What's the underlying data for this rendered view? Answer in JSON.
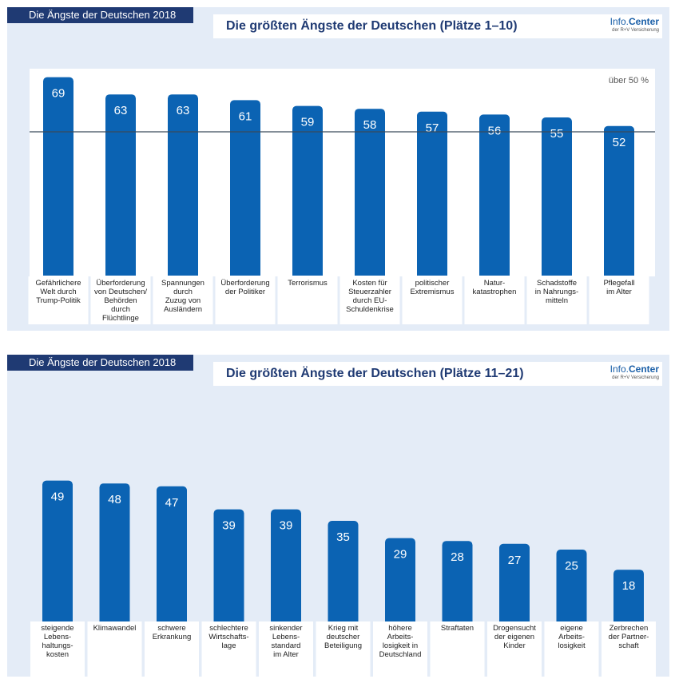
{
  "charts": [
    {
      "tag": "Die Ängste der Deutschen 2018",
      "title": "Die größten Ängste der Deutschen (Plätze 1–10)",
      "brand_name_a": "Info.",
      "brand_name_b": "Center",
      "brand_sub": "der R+V Versicherung"
    },
    {
      "tag": "Die Ängste der Deutschen 2018",
      "title": "Die größten Ängste der Deutschen (Plätze 11–21)",
      "brand_name_a": "Info.",
      "brand_name_b": "Center",
      "brand_sub": "der R+V Versicherung"
    }
  ],
  "colors": {
    "bar": "#0b63b3",
    "header": "#1f3a73",
    "panel": "#e4ecf7"
  },
  "chart_data": [
    {
      "type": "bar",
      "title": "Die größten Ängste der Deutschen (Plätze 1–10)",
      "unit": "%",
      "reference_line": {
        "value": 50,
        "label": "über 50 %"
      },
      "ylim": [
        0,
        75
      ],
      "categories": [
        [
          "Gefährlichere",
          "Welt durch",
          "Trump-Politik"
        ],
        [
          "Überforderung",
          "von Deutschen/",
          "Behörden",
          "durch",
          "Flüchtlinge"
        ],
        [
          "Spannungen",
          "durch",
          "Zuzug von",
          "Ausländern"
        ],
        [
          "Überforderung",
          "der Politiker"
        ],
        [
          "Terrorismus"
        ],
        [
          "Kosten für",
          "Steuerzahler",
          "durch EU-",
          "Schuldenkrise"
        ],
        [
          "politischer",
          "Extremismus"
        ],
        [
          "Natur-",
          "katastrophen"
        ],
        [
          "Schadstoffe",
          "in Nahrungs-",
          "mitteln"
        ],
        [
          "Pflegefall",
          "im Alter"
        ]
      ],
      "values": [
        69,
        63,
        63,
        61,
        59,
        58,
        57,
        56,
        55,
        52
      ]
    },
    {
      "type": "bar",
      "title": "Die größten Ängste der Deutschen (Plätze 11–21)",
      "unit": "%",
      "ylim": [
        0,
        75
      ],
      "categories": [
        [
          "steigende",
          "Lebens-",
          "haltungs-",
          "kosten"
        ],
        [
          "Klimawandel"
        ],
        [
          "schwere",
          "Erkrankung"
        ],
        [
          "schlechtere",
          "Wirtschafts-",
          "lage"
        ],
        [
          "sinkender",
          "Lebens-",
          "standard",
          "im Alter"
        ],
        [
          "Krieg mit",
          "deutscher",
          "Beteiligung"
        ],
        [
          "höhere",
          "Arbeits-",
          "losigkeit in",
          "Deutschland"
        ],
        [
          "Straftaten"
        ],
        [
          "Drogensucht",
          "der eigenen",
          "Kinder"
        ],
        [
          "eigene",
          "Arbeits-",
          "losigkeit"
        ],
        [
          "Zerbrechen",
          "der Partner-",
          "schaft"
        ]
      ],
      "values": [
        49,
        48,
        47,
        39,
        39,
        35,
        29,
        28,
        27,
        25,
        18
      ]
    }
  ]
}
